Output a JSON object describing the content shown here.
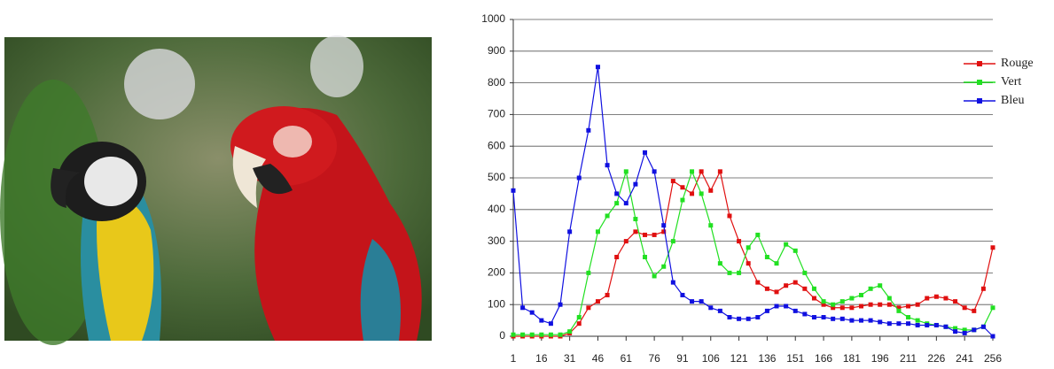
{
  "chart_data": {
    "type": "line",
    "x": [
      1,
      6,
      11,
      16,
      21,
      26,
      31,
      36,
      41,
      46,
      51,
      56,
      61,
      66,
      71,
      76,
      81,
      86,
      91,
      96,
      101,
      106,
      111,
      116,
      121,
      126,
      131,
      136,
      141,
      146,
      151,
      156,
      161,
      166,
      171,
      176,
      181,
      186,
      191,
      196,
      201,
      206,
      211,
      216,
      221,
      226,
      231,
      236,
      241,
      246,
      251,
      256
    ],
    "series": [
      {
        "name": "Rouge",
        "color": "#e01010",
        "values": [
          0,
          0,
          0,
          0,
          0,
          0,
          10,
          40,
          90,
          110,
          130,
          250,
          300,
          330,
          320,
          320,
          330,
          490,
          470,
          450,
          520,
          460,
          520,
          380,
          300,
          230,
          170,
          150,
          140,
          160,
          170,
          150,
          120,
          100,
          90,
          90,
          90,
          95,
          100,
          100,
          100,
          90,
          95,
          100,
          120,
          125,
          120,
          110,
          90,
          80,
          150,
          280
        ]
      },
      {
        "name": "Vert",
        "color": "#22e022",
        "values": [
          5,
          5,
          5,
          5,
          5,
          5,
          15,
          60,
          200,
          330,
          380,
          420,
          520,
          370,
          250,
          190,
          220,
          300,
          430,
          520,
          450,
          350,
          230,
          200,
          200,
          280,
          320,
          250,
          230,
          290,
          270,
          200,
          150,
          110,
          100,
          110,
          120,
          130,
          150,
          160,
          120,
          80,
          60,
          50,
          40,
          35,
          30,
          25,
          20,
          20,
          30,
          90
        ]
      },
      {
        "name": "Bleu",
        "color": "#1010e0",
        "values": [
          460,
          90,
          75,
          50,
          40,
          100,
          330,
          500,
          650,
          850,
          540,
          450,
          420,
          480,
          580,
          520,
          350,
          170,
          130,
          110,
          110,
          90,
          80,
          60,
          55,
          55,
          60,
          80,
          95,
          95,
          80,
          70,
          60,
          60,
          55,
          55,
          50,
          50,
          50,
          45,
          40,
          40,
          40,
          35,
          35,
          35,
          30,
          15,
          10,
          20,
          30,
          0
        ]
      }
    ],
    "xlim": [
      1,
      256
    ],
    "xticks": [
      1,
      16,
      31,
      46,
      61,
      76,
      91,
      106,
      121,
      136,
      151,
      166,
      181,
      196,
      211,
      226,
      241,
      256
    ],
    "ylim": [
      0,
      1000
    ],
    "yticks": [
      0,
      100,
      200,
      300,
      400,
      500,
      600,
      700,
      800,
      900,
      1000
    ],
    "grid": true,
    "legend": "top-right"
  }
}
